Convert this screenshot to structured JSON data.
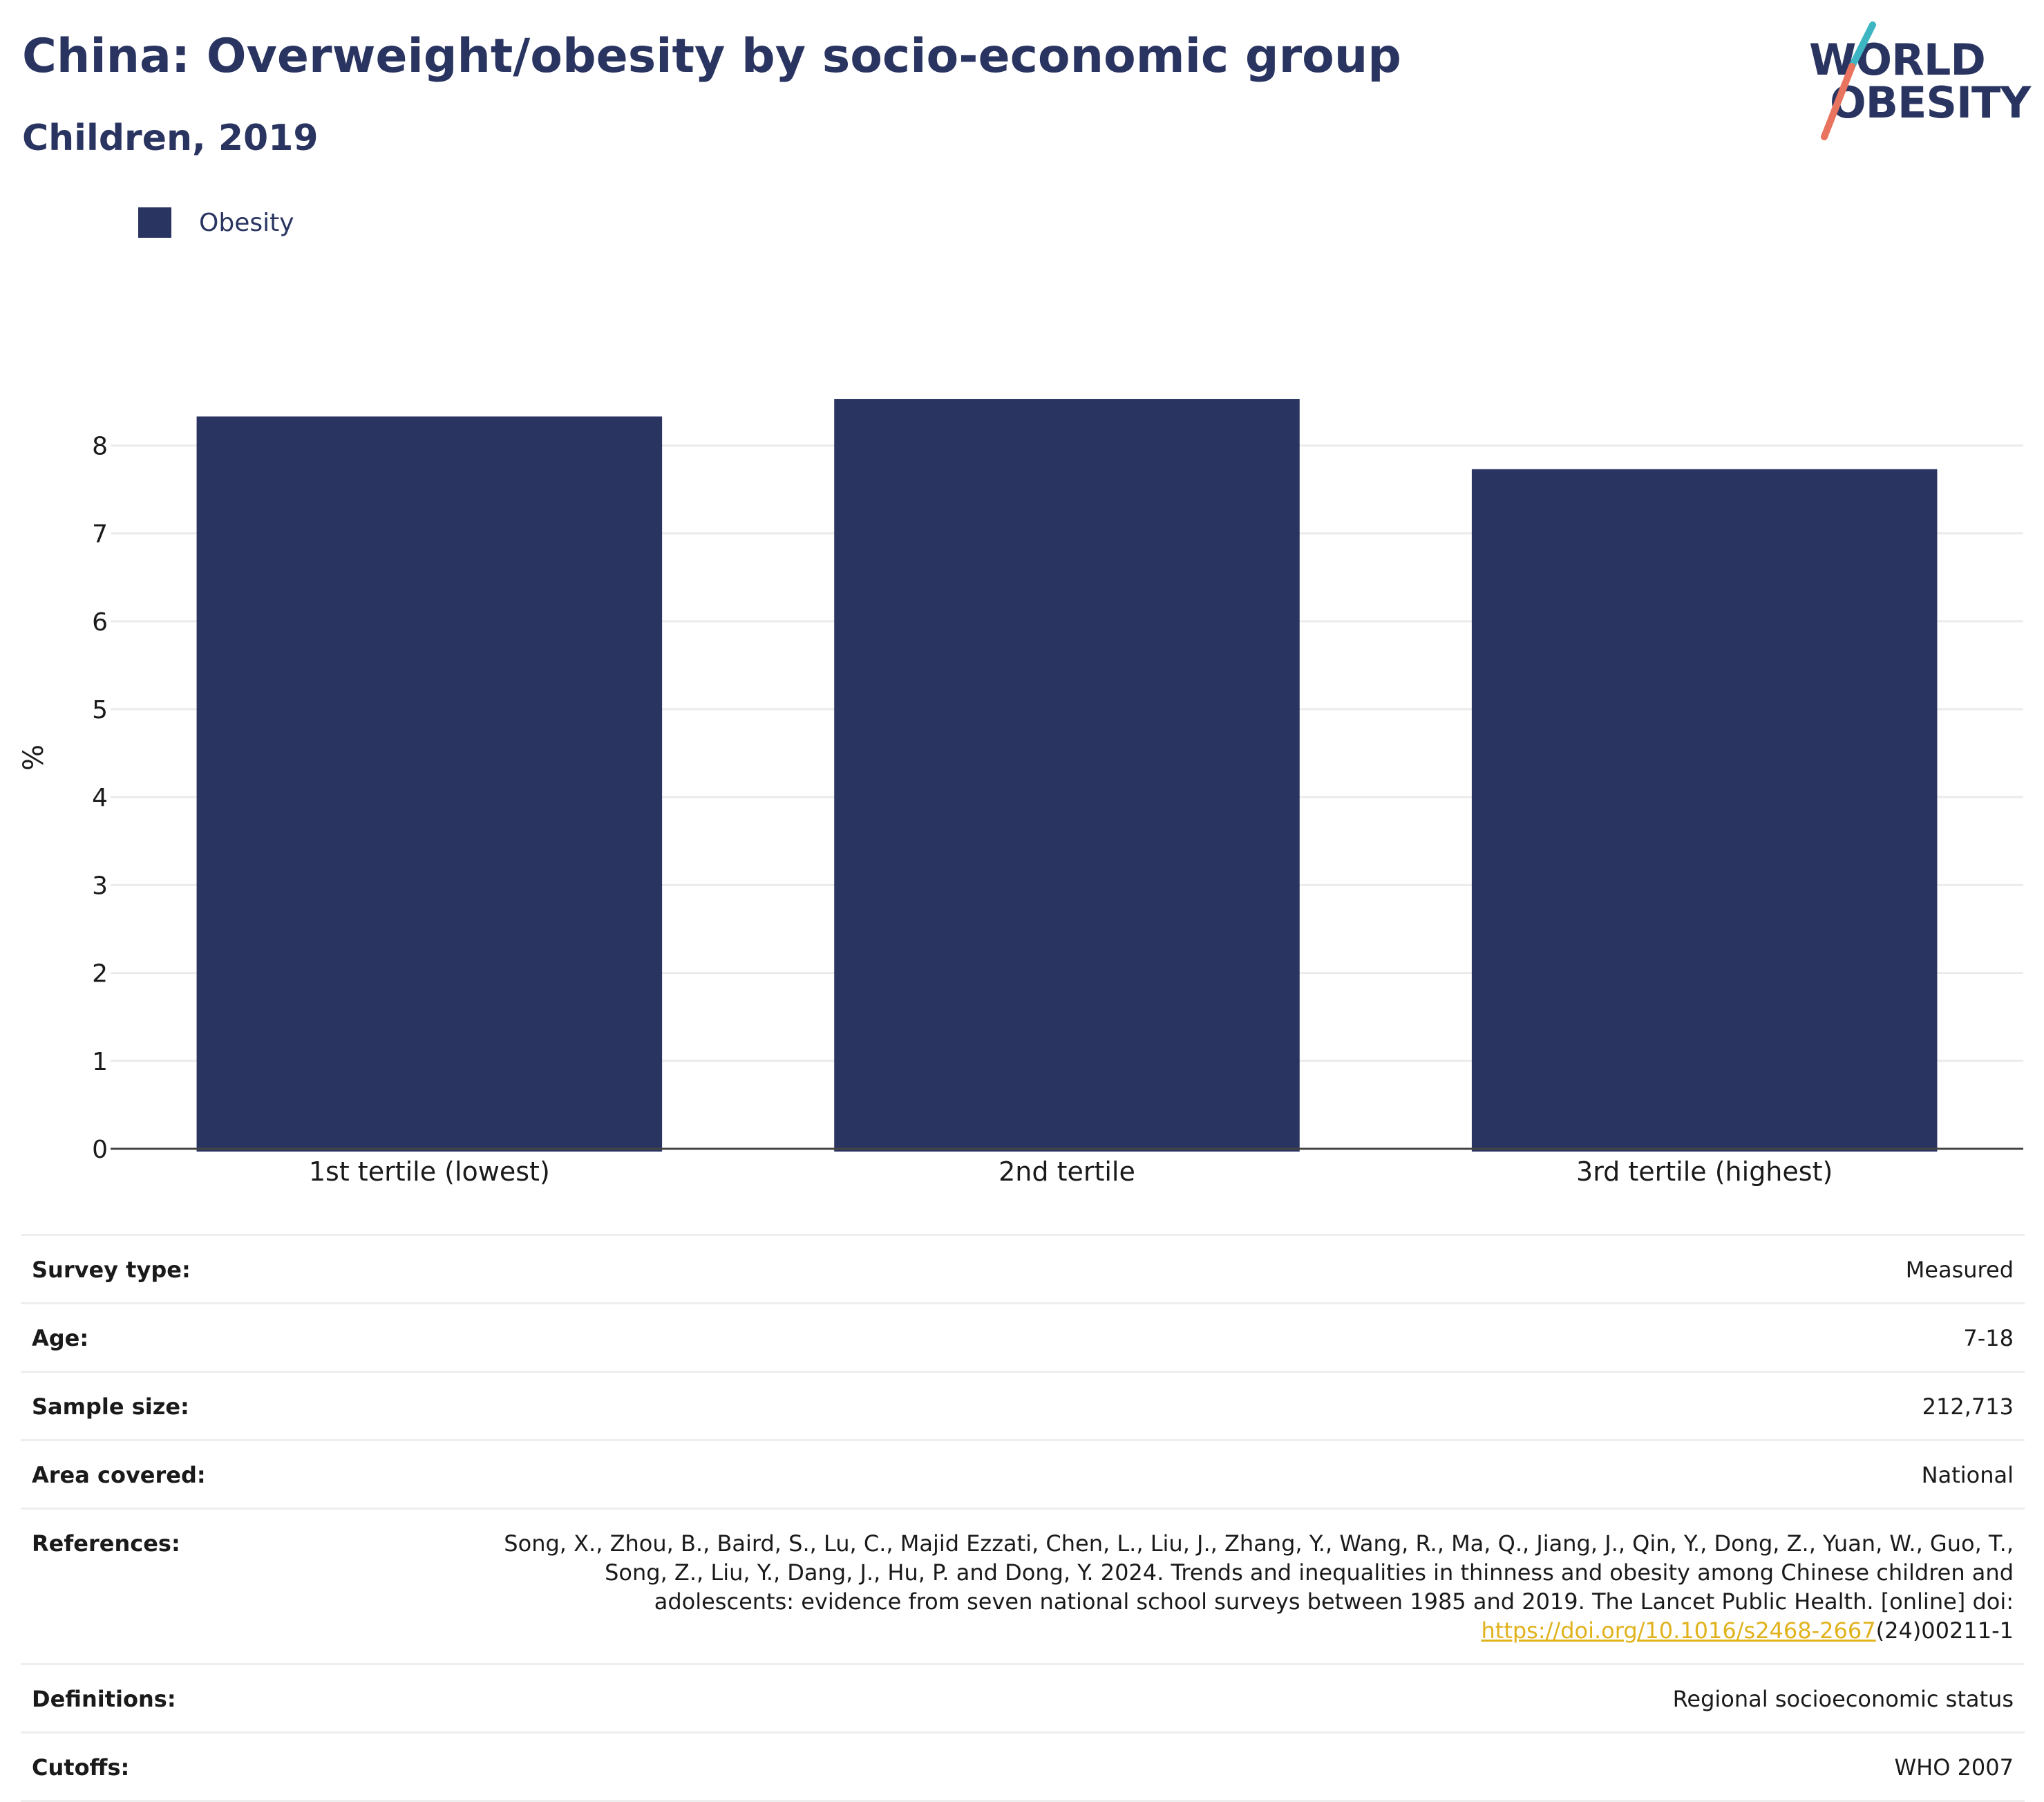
{
  "header": {
    "title": "China: Overweight/obesity by socio-economic group",
    "subtitle": "Children, 2019"
  },
  "logo": {
    "line1": "WORLD",
    "line2": "OBESITY",
    "colors": {
      "text": "#2a3461",
      "teal": "#3db5c2",
      "coral": "#e8735e"
    }
  },
  "legend": {
    "entries": [
      {
        "label": "Obesity",
        "color": "#2a3461"
      }
    ]
  },
  "chart_data": {
    "type": "bar",
    "title": "China: Overweight/obesity by socio-economic group",
    "subtitle": "Children, 2019",
    "categories": [
      "1st tertile (lowest)",
      "2nd tertile",
      "3rd tertile (highest)"
    ],
    "series": [
      {
        "name": "Obesity",
        "values": [
          8.33,
          8.53,
          7.73
        ],
        "color": "#2a3461"
      }
    ],
    "xlabel": "",
    "ylabel": "%",
    "ylim": [
      0,
      8.9
    ],
    "yticks": [
      0,
      1,
      2,
      3,
      4,
      5,
      6,
      7,
      8
    ],
    "grid": true,
    "legend_position": "top-left"
  },
  "info_table": {
    "rows": [
      {
        "key": "Survey type:",
        "value": "Measured"
      },
      {
        "key": "Age:",
        "value": "7-18"
      },
      {
        "key": "Sample size:",
        "value": "212,713"
      },
      {
        "key": "Area covered:",
        "value": "National"
      },
      {
        "key": "References:",
        "lines": [
          "Song, X., Zhou, B., Baird, S., Lu, C., Majid Ezzati, Chen, L., Liu, J., Zhang, Y., Wang, R., Ma, Q., Jiang, J., Qin, Y., Dong, Z., Yuan, W., Guo, T.,",
          "Song, Z., Liu, Y., Dang, J., Hu, P. and Dong, Y. 2024. Trends and inequalities in thinness and obesity among Chinese children and",
          "adolescents: evidence from seven national school surveys between 1985 and 2019. The Lancet Public Health. [online] doi:"
        ],
        "link_text": "https://doi.org/10.1016/s2468-2667",
        "link_suffix": "(24)00211-1"
      },
      {
        "key": "Definitions:",
        "value": "Regional socioeconomic status"
      },
      {
        "key": "Cutoffs:",
        "value": "WHO 2007"
      }
    ]
  }
}
